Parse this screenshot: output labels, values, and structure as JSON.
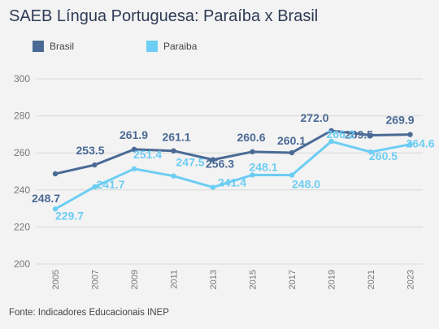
{
  "title": "SAEB Língua Portuguesa: Paraíba x Brasil",
  "source": "Fonte: Indicadores Educacionais INEP",
  "chart_data": {
    "type": "line",
    "title": "SAEB Língua Portuguesa: Paraíba x Brasil",
    "xlabel": "",
    "ylabel": "",
    "x": [
      "2005",
      "2007",
      "2009",
      "2011",
      "2013",
      "2015",
      "2017",
      "2019",
      "2021",
      "2023"
    ],
    "yticks": [
      "200",
      "220",
      "240",
      "260",
      "280",
      "300"
    ],
    "ylim": [
      200,
      300
    ],
    "grid": true,
    "legend_position": "top-left",
    "series": [
      {
        "name": "Brasil",
        "color": "#4a6a95",
        "values": [
          248.7,
          253.5,
          261.9,
          261.1,
          256.3,
          260.6,
          260.1,
          272.0,
          269.5,
          269.9
        ],
        "labels": [
          "248.7",
          "253.5",
          "261.9",
          "261.1",
          "256.3",
          "260.6",
          "260.1",
          "272.0",
          "269.5",
          "269.9"
        ]
      },
      {
        "name": "Paraiba",
        "color": "#6dcdf3",
        "values": [
          229.7,
          241.7,
          251.4,
          247.5,
          241.4,
          248.1,
          248.0,
          266.2,
          260.5,
          264.6
        ],
        "labels": [
          "229.7",
          "241.7",
          "251.4",
          "247.5",
          "241.4",
          "248.1",
          "248.0",
          "266.2",
          "260.5",
          "264.6"
        ]
      }
    ]
  }
}
